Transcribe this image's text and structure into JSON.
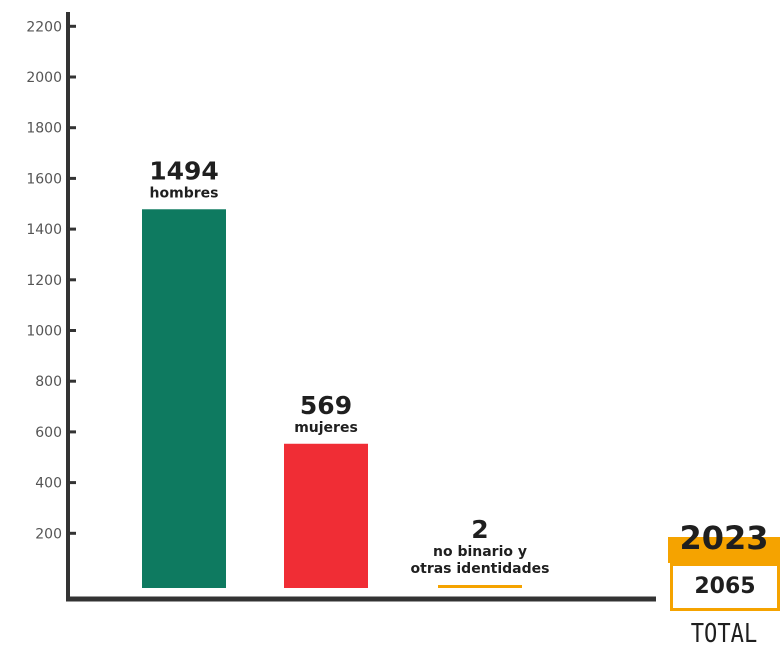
{
  "colors": {
    "hombres": "#0e7a60",
    "mujeres": "#f02d35",
    "no_binario": "#f5a300",
    "axis": "#333333",
    "total_accent": "#f5a300"
  },
  "chart_data": {
    "type": "bar",
    "categories": [
      "hombres",
      "mujeres",
      "no binario y otras identidades"
    ],
    "category_label_lines": [
      [
        "hombres"
      ],
      [
        "mujeres"
      ],
      [
        "no binario y",
        "otras identidades"
      ]
    ],
    "values": [
      1494,
      569,
      2
    ],
    "value_labels": [
      "1494",
      "569",
      "2"
    ],
    "ylim": [
      0,
      2300
    ],
    "yticks": [
      200,
      400,
      600,
      800,
      1000,
      1200,
      1400,
      1600,
      1800,
      2000,
      2200
    ],
    "ytick_labels": [
      "200",
      "400",
      "600",
      "800",
      "1000",
      "1200",
      "1400",
      "1600",
      "1800",
      "2000",
      "2200"
    ],
    "grid": false,
    "title": "",
    "xlabel": "",
    "ylabel": ""
  },
  "summary": {
    "year": "2023",
    "total_value": "2065",
    "total_label": "TOTAL"
  }
}
